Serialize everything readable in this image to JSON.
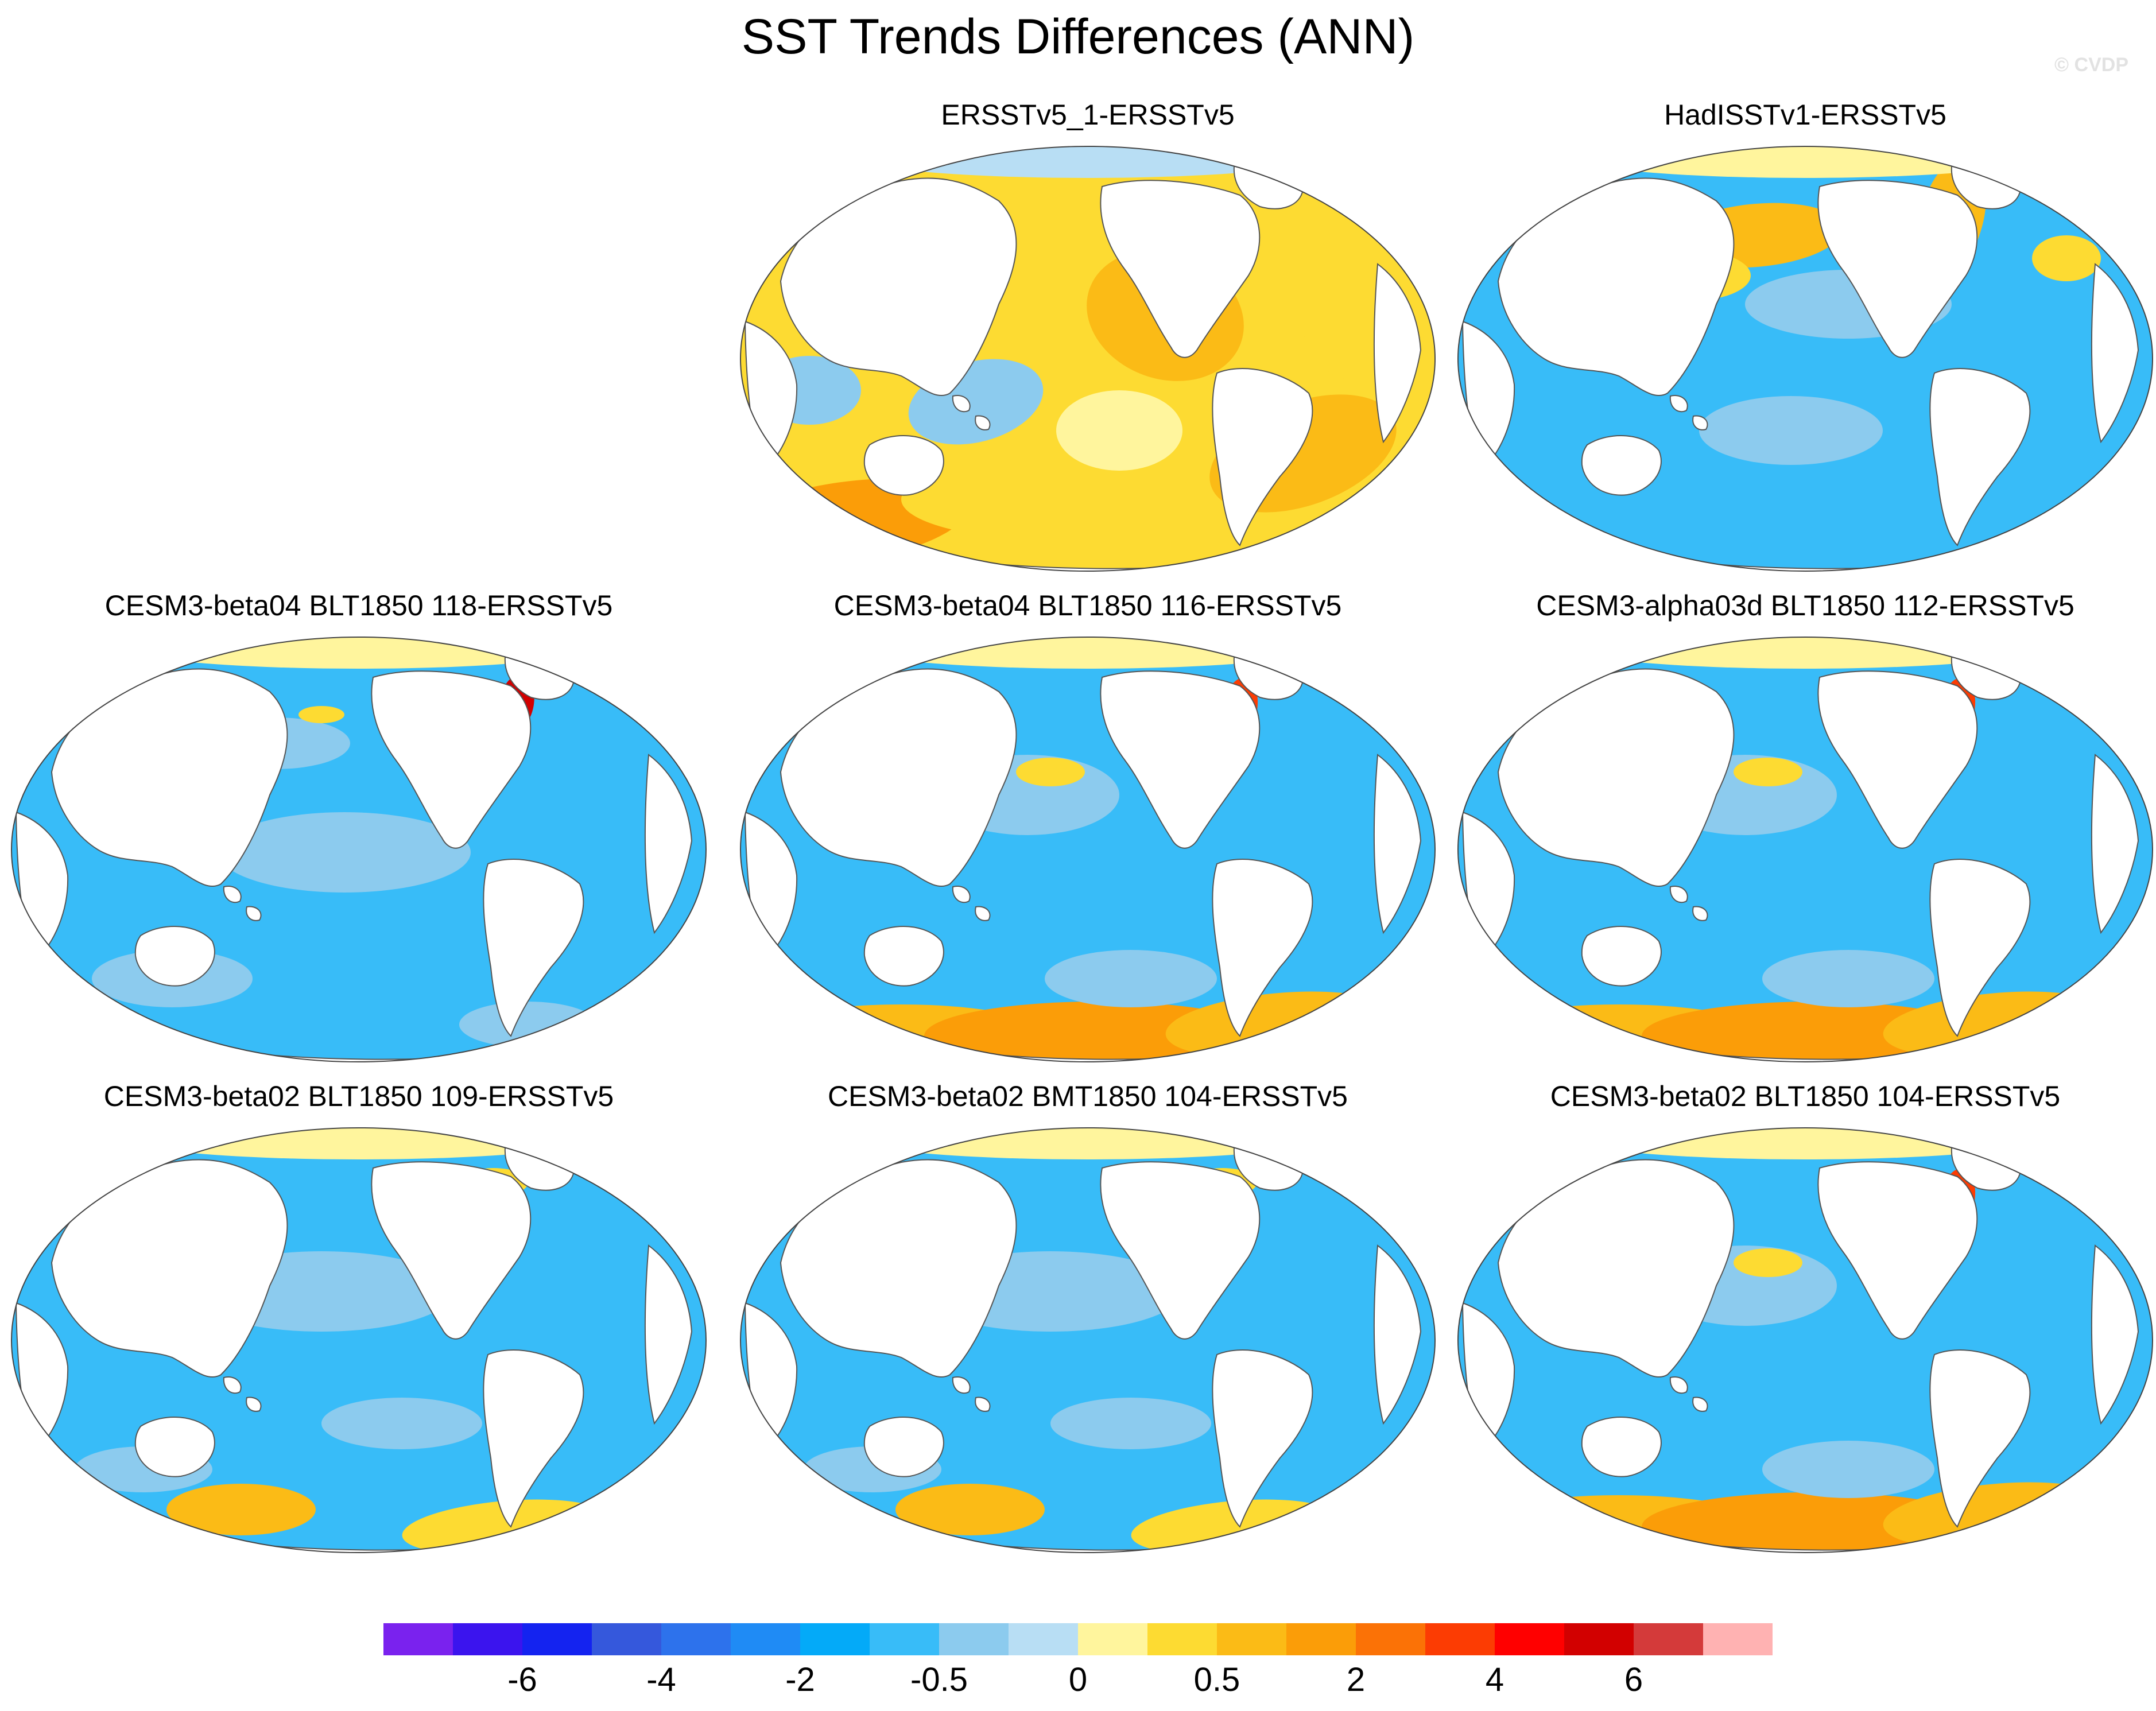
{
  "figure": {
    "title": "SST Trends Differences (ANN)",
    "watermark": "© CVDP"
  },
  "panels": [
    {
      "title": "ERSSTv5_1-ERSSTv5",
      "dominant_color": "#fddb32",
      "col": 1,
      "row": 0,
      "pattern": "warm"
    },
    {
      "title": "HadISSTv1-ERSSTv5",
      "dominant_color": "#38bcf8",
      "col": 2,
      "row": 0,
      "pattern": "cool-warm-north-pacific"
    },
    {
      "title": "CESM3-beta04 BLT1850 118-ERSSTv5",
      "dominant_color": "#38bcf8",
      "col": 0,
      "row": 1,
      "pattern": "cool"
    },
    {
      "title": "CESM3-beta04 BLT1850 116-ERSSTv5",
      "dominant_color": "#38bcf8",
      "col": 1,
      "row": 1,
      "pattern": "cool-warm-southern-ocean"
    },
    {
      "title": "CESM3-alpha03d BLT1850 112-ERSSTv5",
      "dominant_color": "#38bcf8",
      "col": 2,
      "row": 1,
      "pattern": "cool-warm-southern-ocean"
    },
    {
      "title": "CESM3-beta02 BLT1850 109-ERSSTv5",
      "dominant_color": "#38bcf8",
      "col": 0,
      "row": 2,
      "pattern": "cool-warm-southern-patches"
    },
    {
      "title": "CESM3-beta02 BMT1850 104-ERSSTv5",
      "dominant_color": "#38bcf8",
      "col": 1,
      "row": 2,
      "pattern": "cool-warm-southern-patches"
    },
    {
      "title": "CESM3-beta02 BLT1850 104-ERSSTv5",
      "dominant_color": "#38bcf8",
      "col": 2,
      "row": 2,
      "pattern": "cool-warm-southern-ocean"
    }
  ],
  "colorbar": {
    "colors": [
      "#7a22ee",
      "#3b14ee",
      "#1423f0",
      "#3558dc",
      "#2d72ec",
      "#1f8bf5",
      "#04aaf8",
      "#38bcf8",
      "#8ccbee",
      "#b8def4",
      "#fff59d",
      "#fddb32",
      "#fbbb16",
      "#fb9d08",
      "#fb7206",
      "#fc3c03",
      "#ff0000",
      "#d20000",
      "#d43a3a",
      "#ffb2b2"
    ],
    "tick_labels": [
      "-6",
      "-4",
      "-2",
      "-0.5",
      "0",
      "0.5",
      "2",
      "4",
      "6"
    ],
    "tick_boundaries": [
      2,
      4,
      6,
      8,
      10,
      12,
      14,
      16,
      18
    ]
  }
}
